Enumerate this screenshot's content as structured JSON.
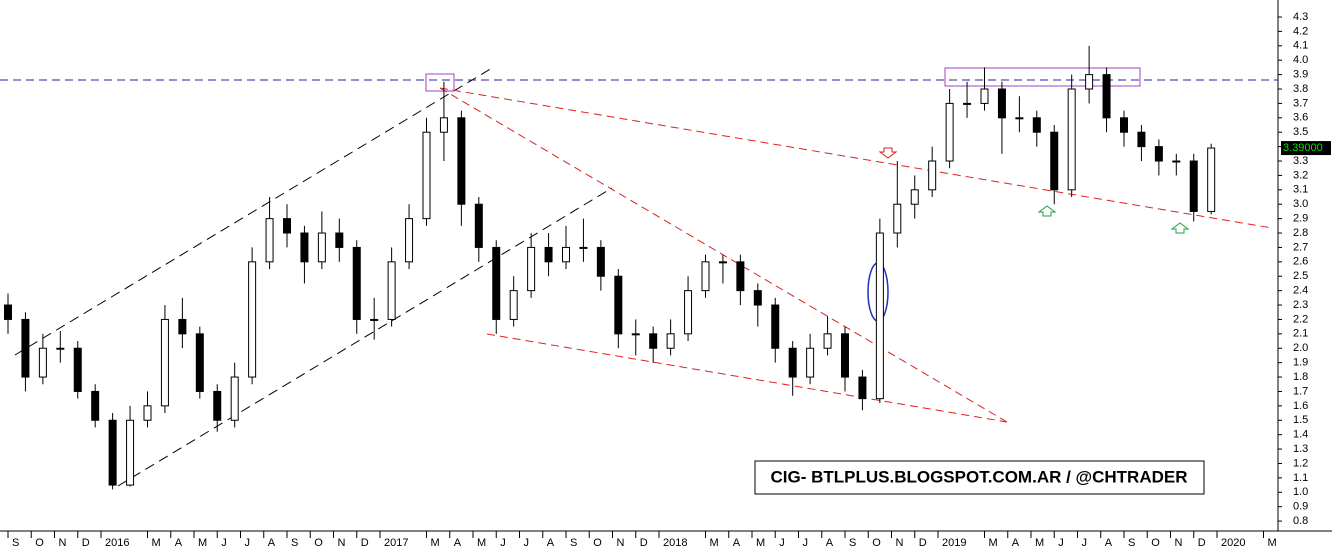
{
  "chart_data": {
    "type": "candlestick",
    "annotation": "CIG- BTLPLUS.BLOGSPOT.COM.AR / @CHTRADER",
    "last_price": {
      "value": 3.39,
      "label": "3.39000"
    },
    "ylim": [
      0.738,
      4.418
    ],
    "yticks": [
      0.8,
      0.9,
      {
        "value": 1.0,
        "label": "1.0"
      },
      1.1,
      1.2,
      1.3,
      1.4,
      1.5,
      1.6,
      1.7,
      1.8,
      1.9,
      {
        "value": 2.0,
        "label": "2.0"
      },
      2.1,
      2.2,
      2.3,
      2.4,
      2.5,
      2.6,
      2.7,
      2.8,
      2.9,
      {
        "value": 3.0,
        "label": "3.0"
      },
      3.1,
      3.2,
      3.3,
      3.4,
      3.5,
      3.6,
      3.7,
      3.8,
      3.9,
      {
        "value": 4.0,
        "label": "4.0"
      },
      4.1,
      4.2,
      4.3
    ],
    "xlim": [
      -0.344,
      54.624
    ],
    "xticks": [
      {
        "value": 0,
        "label": "S"
      },
      {
        "value": 1,
        "label": "O"
      },
      {
        "value": 2,
        "label": "N"
      },
      {
        "value": 3,
        "label": "D"
      },
      {
        "value": 4,
        "label": "2016"
      },
      {
        "value": 6,
        "label": "M"
      },
      {
        "value": 7,
        "label": "A"
      },
      {
        "value": 8,
        "label": "M"
      },
      {
        "value": 9,
        "label": "J"
      },
      {
        "value": 10,
        "label": "J"
      },
      {
        "value": 11,
        "label": "A"
      },
      {
        "value": 12,
        "label": "S"
      },
      {
        "value": 13,
        "label": "O"
      },
      {
        "value": 14,
        "label": "N"
      },
      {
        "value": 15,
        "label": "D"
      },
      {
        "value": 16,
        "label": "2017"
      },
      {
        "value": 18,
        "label": "M"
      },
      {
        "value": 19,
        "label": "A"
      },
      {
        "value": 20,
        "label": "M"
      },
      {
        "value": 21,
        "label": "J"
      },
      {
        "value": 22,
        "label": "J"
      },
      {
        "value": 23,
        "label": "A"
      },
      {
        "value": 24,
        "label": "S"
      },
      {
        "value": 25,
        "label": "O"
      },
      {
        "value": 26,
        "label": "N"
      },
      {
        "value": 27,
        "label": "D"
      },
      {
        "value": 28,
        "label": "2018"
      },
      {
        "value": 30,
        "label": "M"
      },
      {
        "value": 31,
        "label": "A"
      },
      {
        "value": 32,
        "label": "M"
      },
      {
        "value": 33,
        "label": "J"
      },
      {
        "value": 34,
        "label": "J"
      },
      {
        "value": 35,
        "label": "A"
      },
      {
        "value": 36,
        "label": "S"
      },
      {
        "value": 37,
        "label": "O"
      },
      {
        "value": 38,
        "label": "N"
      },
      {
        "value": 39,
        "label": "D"
      },
      {
        "value": 40,
        "label": "2019"
      },
      {
        "value": 42,
        "label": "M"
      },
      {
        "value": 43,
        "label": "A"
      },
      {
        "value": 44,
        "label": "M"
      },
      {
        "value": 45,
        "label": "J"
      },
      {
        "value": 46,
        "label": "J"
      },
      {
        "value": 47,
        "label": "A"
      },
      {
        "value": 48,
        "label": "S"
      },
      {
        "value": 49,
        "label": "O"
      },
      {
        "value": 50,
        "label": "N"
      },
      {
        "value": 51,
        "label": "D"
      },
      {
        "value": 52,
        "label": "2020"
      },
      {
        "value": 54,
        "label": "M"
      }
    ],
    "up_color": "#ffffff",
    "down_color": "#000000",
    "edge_color": "#000000",
    "x": [
      0,
      0.75,
      1.5,
      2.25,
      3,
      3.75,
      4.5,
      5.25,
      6,
      6.75,
      7.5,
      8.25,
      9,
      9.75,
      10.5,
      11.25,
      12,
      12.75,
      13.5,
      14.25,
      15,
      15.75,
      16.5,
      17.25,
      18,
      18.75,
      19.5,
      20.25,
      21,
      21.75,
      22.5,
      23.25,
      24,
      24.75,
      25.5,
      26.25,
      27,
      27.75,
      28.5,
      29.25,
      30,
      30.75,
      31.5,
      32.25,
      33,
      33.75,
      34.5,
      35.25,
      36,
      36.75,
      37.5,
      38.25,
      39,
      39.75,
      40.5,
      41.25,
      42,
      42.75,
      43.5,
      44.25,
      45,
      45.75,
      46.5,
      47.25,
      48,
      48.75,
      49.5,
      50.25,
      51,
      51.75
    ],
    "open": [
      2.3,
      2.2,
      1.8,
      2.0,
      2.0,
      1.7,
      1.5,
      1.05,
      1.5,
      1.6,
      2.2,
      2.1,
      1.7,
      1.5,
      1.8,
      2.6,
      2.9,
      2.8,
      2.6,
      2.8,
      2.7,
      2.2,
      2.2,
      2.6,
      2.9,
      3.5,
      3.6,
      3.0,
      2.7,
      2.2,
      2.4,
      2.7,
      2.6,
      2.7,
      2.7,
      2.5,
      2.1,
      2.1,
      2.0,
      2.1,
      2.4,
      2.6,
      2.6,
      2.4,
      2.3,
      2.0,
      1.8,
      2.0,
      2.1,
      1.8,
      1.65,
      2.8,
      3.0,
      3.1,
      3.3,
      3.7,
      3.7,
      3.8,
      3.6,
      3.6,
      3.5,
      3.1,
      3.8,
      3.9,
      3.6,
      3.5,
      3.4,
      3.3,
      3.3,
      2.95
    ],
    "high": [
      2.38,
      2.25,
      2.1,
      2.12,
      2.05,
      1.75,
      1.55,
      1.6,
      1.7,
      2.3,
      2.35,
      2.15,
      1.75,
      1.9,
      2.7,
      3.05,
      3.0,
      2.85,
      2.95,
      2.9,
      2.75,
      2.35,
      2.7,
      3.0,
      3.6,
      3.85,
      3.65,
      3.05,
      2.75,
      2.5,
      2.8,
      2.8,
      2.85,
      2.9,
      2.75,
      2.55,
      2.2,
      2.15,
      2.2,
      2.5,
      2.65,
      2.65,
      2.65,
      2.45,
      2.35,
      2.05,
      2.1,
      2.22,
      2.15,
      1.85,
      2.9,
      3.3,
      3.2,
      3.4,
      3.8,
      3.85,
      3.95,
      3.85,
      3.75,
      3.65,
      3.55,
      3.9,
      4.1,
      3.95,
      3.65,
      3.55,
      3.45,
      3.35,
      3.35,
      3.42
    ],
    "low": [
      2.1,
      1.7,
      1.75,
      1.9,
      1.65,
      1.45,
      1.02,
      1.04,
      1.45,
      1.55,
      2.0,
      1.65,
      1.42,
      1.45,
      1.75,
      2.55,
      2.7,
      2.45,
      2.55,
      2.6,
      2.1,
      2.06,
      2.15,
      2.55,
      2.85,
      3.3,
      2.85,
      2.6,
      2.1,
      2.15,
      2.35,
      2.5,
      2.55,
      2.6,
      2.4,
      2.0,
      1.95,
      1.9,
      1.95,
      2.05,
      2.35,
      2.45,
      2.3,
      2.15,
      1.9,
      1.67,
      1.75,
      1.95,
      1.7,
      1.57,
      1.62,
      2.7,
      2.9,
      3.05,
      3.25,
      3.6,
      3.65,
      3.35,
      3.5,
      3.4,
      3.0,
      3.05,
      3.7,
      3.5,
      3.4,
      3.3,
      3.2,
      3.2,
      2.88,
      2.93
    ],
    "close": [
      2.2,
      1.8,
      2.0,
      2.0,
      1.7,
      1.5,
      1.05,
      1.5,
      1.6,
      2.2,
      2.1,
      1.7,
      1.5,
      1.8,
      2.6,
      2.9,
      2.8,
      2.6,
      2.8,
      2.7,
      2.2,
      2.2,
      2.6,
      2.9,
      3.5,
      3.6,
      3.0,
      2.7,
      2.2,
      2.4,
      2.7,
      2.6,
      2.7,
      2.7,
      2.5,
      2.1,
      2.1,
      2.0,
      2.1,
      2.4,
      2.6,
      2.6,
      2.4,
      2.3,
      2.0,
      1.8,
      2.0,
      2.1,
      1.8,
      1.65,
      2.8,
      3.0,
      3.1,
      3.3,
      3.7,
      3.7,
      3.8,
      3.6,
      3.6,
      3.5,
      3.1,
      3.8,
      3.9,
      3.6,
      3.5,
      3.4,
      3.3,
      3.3,
      2.95,
      3.39
    ]
  }
}
